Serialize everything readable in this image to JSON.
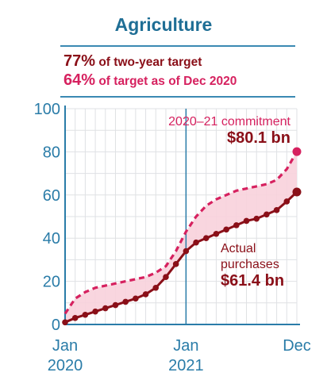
{
  "header": {
    "title": "Agriculture",
    "stat1_value": "77%",
    "stat1_text": "of two-year target",
    "stat2_value": "64%",
    "stat2_text": "of target as of Dec 2020"
  },
  "chart_data": {
    "type": "area",
    "ylim": [
      0,
      100
    ],
    "yticks": [
      "0",
      "20",
      "40",
      "60",
      "80",
      "100"
    ],
    "xtick_labels": [
      {
        "line1": "Jan",
        "line2": "2020"
      },
      {
        "line1": "Jan",
        "line2": "2021"
      },
      {
        "line1": "Dec",
        "line2": ""
      }
    ],
    "x_months": [
      0,
      1,
      2,
      3,
      4,
      5,
      6,
      7,
      8,
      9,
      10,
      11,
      12,
      13,
      14,
      15,
      16,
      17,
      18,
      19,
      20,
      21,
      22,
      23
    ],
    "series": [
      {
        "name": "2020–21 commitment",
        "style": "dashed",
        "color": "#d6215f",
        "end_label_line1": "2020–21 commitment",
        "end_label_value": "$80.1 bn",
        "values": [
          5,
          12,
          15,
          17,
          18,
          19,
          20,
          21,
          22,
          24,
          27,
          34,
          43,
          50,
          55,
          58,
          60,
          62,
          63,
          64,
          65,
          67,
          72,
          80.1
        ]
      },
      {
        "name": "Actual purchases",
        "style": "solid",
        "color": "#8a0f18",
        "end_label_line1": "Actual",
        "end_label_line2": "purchases",
        "end_label_value": "$61.4 bn",
        "values": [
          1,
          3,
          4.5,
          6,
          7.5,
          9,
          10.5,
          12,
          14,
          17,
          22,
          28,
          34,
          38,
          40,
          42,
          44,
          46,
          48,
          49,
          51,
          53,
          57,
          61.4
        ]
      }
    ],
    "colors": {
      "axis": "#2a7ca8",
      "grid": "#dfe1e4",
      "fill": "#f8d2dc",
      "marker_line": "#2a7ca8"
    },
    "grid": true
  }
}
